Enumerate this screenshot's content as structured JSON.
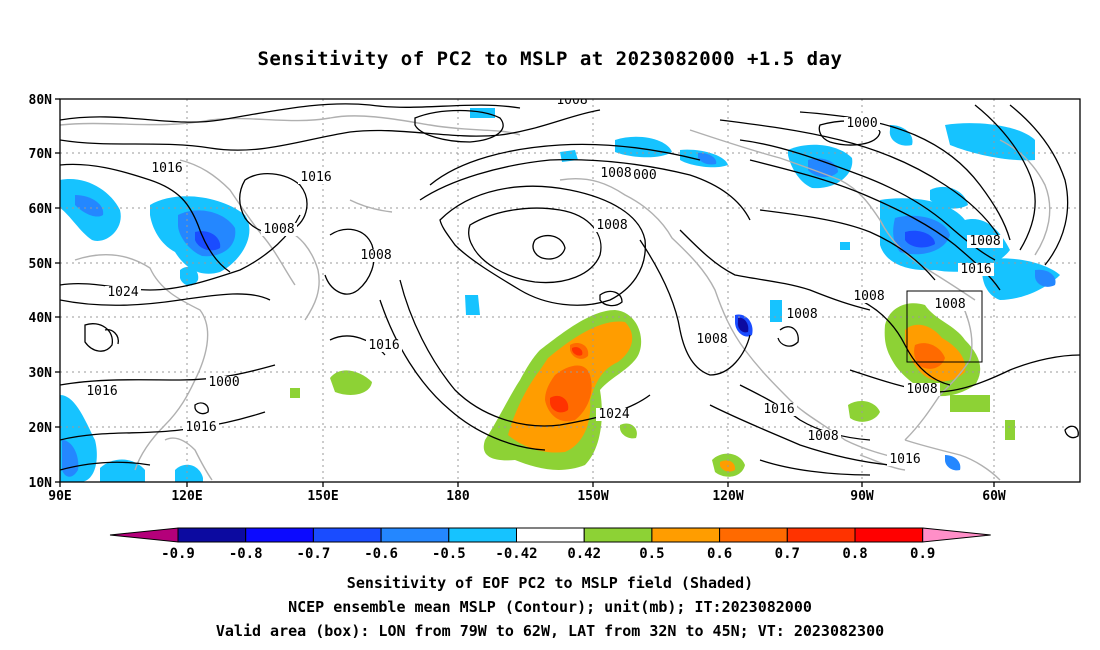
{
  "title": "Sensitivity of PC2 to MSLP at 2023082000 +1.5 day",
  "map": {
    "lon_range": [
      "90E",
      "50W"
    ],
    "lat_range": [
      "10N",
      "80N"
    ],
    "lon_ticks": [
      "90E",
      "120E",
      "150E",
      "180",
      "150W",
      "120W",
      "90W",
      "60W"
    ],
    "lat_ticks": [
      "10N",
      "20N",
      "30N",
      "40N",
      "50N",
      "60N",
      "70N",
      "80N"
    ],
    "grid": "dotted",
    "coastline_color": "#b0b0b0",
    "contour_color": "#000000",
    "valid_box": {
      "lon": [
        "79W",
        "62W"
      ],
      "lat": [
        "32N",
        "45N"
      ]
    },
    "contour_labels": [
      "1008",
      "1000",
      "1016",
      "1016",
      "1008",
      "1000",
      "1008",
      "1008",
      "1024",
      "1008",
      "1016",
      "1008",
      "1008",
      "1008",
      "1016",
      "1008",
      "1016",
      "1000",
      "1008",
      "1024",
      "1016",
      "1016",
      "1008",
      "1016",
      "1008"
    ]
  },
  "colorbar": {
    "ticks": [
      "-0.9",
      "-0.8",
      "-0.7",
      "-0.6",
      "-0.5",
      "-0.42",
      "0.42",
      "0.5",
      "0.6",
      "0.7",
      "0.8",
      "0.9"
    ],
    "colors": [
      "#b4007a",
      "#0c0aa0",
      "#0c0aff",
      "#1a4cff",
      "#2487ff",
      "#16c3ff",
      "#ffffff",
      "#8dd235",
      "#ff9d00",
      "#ff6a00",
      "#ff3300",
      "#ff0000",
      "#ff8fc8"
    ]
  },
  "caption": {
    "line1": "Sensitivity of EOF PC2 to MSLP field (Shaded)",
    "line2": "NCEP ensemble mean MSLP (Contour); unit(mb); IT:2023082000",
    "line3": "Valid area (box): LON from 79W to 62W, LAT from 32N to 45N; VT: 2023082300"
  }
}
